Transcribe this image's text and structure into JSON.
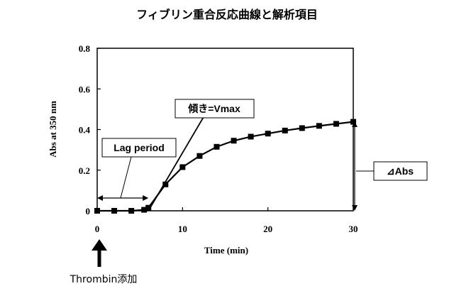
{
  "chart_data": {
    "type": "line",
    "title": "フィブリン重合反応曲線と解析項目",
    "xlabel": "Time (min)",
    "ylabel": "Abs at 350 nm",
    "xlim": [
      0,
      30
    ],
    "ylim": [
      0,
      0.8
    ],
    "x_ticks": [
      "0",
      "10",
      "20",
      "30"
    ],
    "x_tick_values": [
      0,
      10,
      20,
      30
    ],
    "y_ticks": [
      "0",
      "0.2",
      "0.4",
      "0.6",
      "0.8"
    ],
    "y_tick_values": [
      0,
      0.2,
      0.4,
      0.6,
      0.8
    ],
    "grid": false,
    "series": [
      {
        "x": [
          0,
          2,
          4,
          5.5,
          6,
          8,
          10,
          12,
          14,
          16,
          18,
          20,
          22,
          24,
          26,
          28,
          30
        ],
        "y": [
          0,
          0,
          0,
          0.005,
          0.015,
          0.13,
          0.215,
          0.27,
          0.315,
          0.345,
          0.365,
          0.38,
          0.395,
          0.407,
          0.418,
          0.428,
          0.438
        ],
        "marker": "square",
        "color": "#000000"
      }
    ],
    "annotations": {
      "lag_label": "Lag period",
      "slope_label": "傾き=Vmax",
      "delta_label": "⊿Abs",
      "thrombin_label": "Thrombin添加"
    },
    "lag_range": [
      0,
      6
    ],
    "slope_line": {
      "x": [
        6,
        13
      ],
      "y": [
        0,
        0.5
      ]
    },
    "delta_range": [
      0,
      0.44
    ]
  }
}
